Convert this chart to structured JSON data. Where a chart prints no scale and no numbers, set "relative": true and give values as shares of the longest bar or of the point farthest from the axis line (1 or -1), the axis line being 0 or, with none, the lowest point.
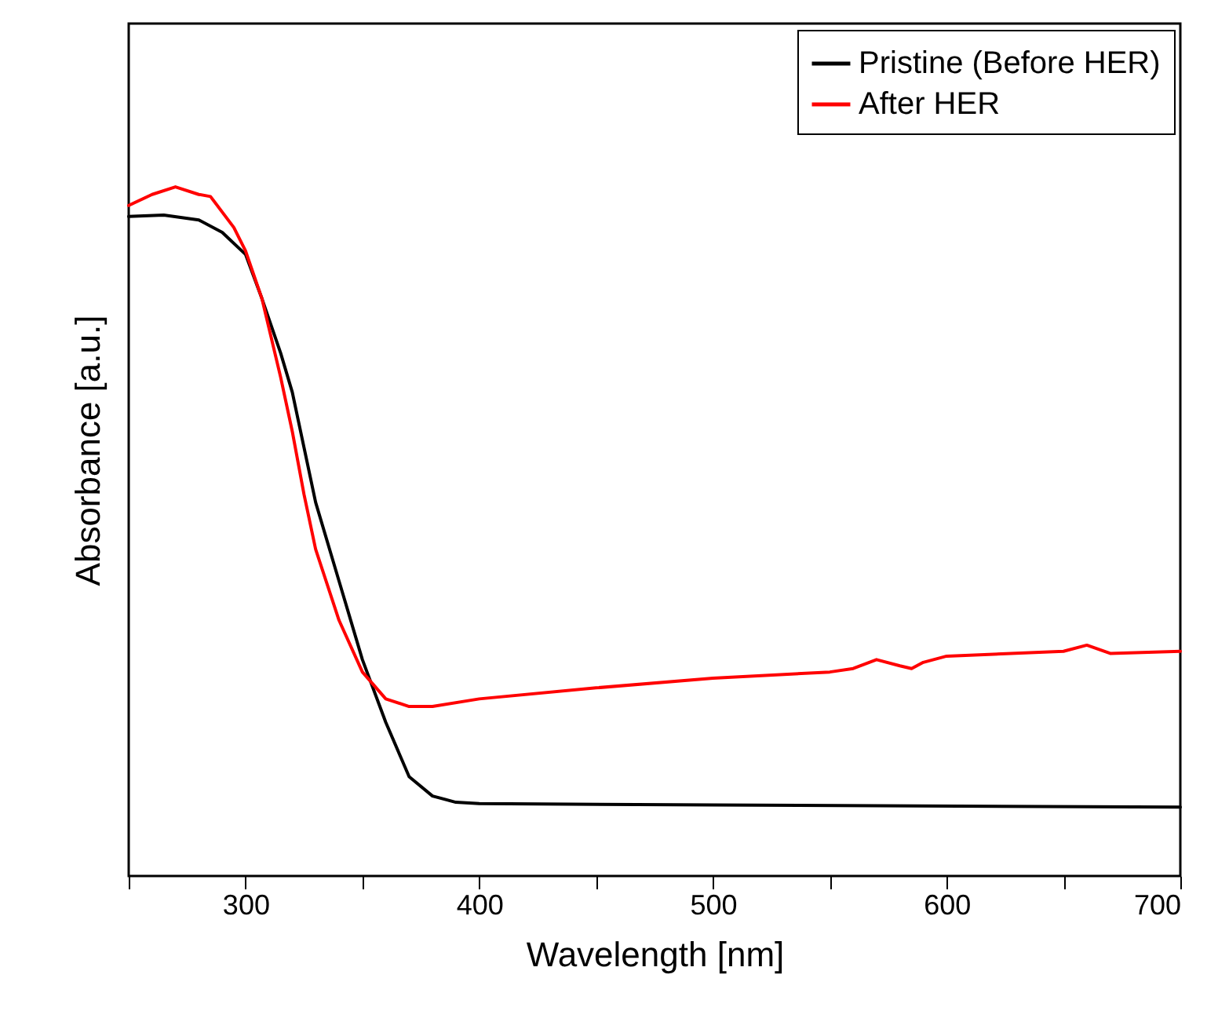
{
  "chart_data": {
    "type": "line",
    "relative": true,
    "xlabel": "Wavelength [nm]",
    "ylabel": "Absorbance [a.u.]",
    "xlim": [
      250,
      700
    ],
    "xticks": [
      {
        "value": 250,
        "label": null
      },
      300,
      {
        "value": 350,
        "label": null
      },
      400,
      {
        "value": 450,
        "label": null
      },
      500,
      {
        "value": 550,
        "label": null
      },
      600,
      {
        "value": 650,
        "label": null
      },
      700
    ],
    "tick_labels": "x",
    "legend": "top right",
    "grid": false,
    "line_style": "solid",
    "marker": "none",
    "series": [
      {
        "name": "Pristine (Before HER)",
        "color": "#000000",
        "x": [
          250,
          265,
          280,
          290,
          300,
          307,
          315,
          320,
          325,
          330,
          340,
          350,
          360,
          370,
          380,
          390,
          400,
          500,
          700
        ],
        "values": [
          0.957,
          0.959,
          0.952,
          0.934,
          0.902,
          0.838,
          0.759,
          0.702,
          0.622,
          0.542,
          0.428,
          0.314,
          0.223,
          0.144,
          0.116,
          0.107,
          0.105,
          0.103,
          0.1
        ]
      },
      {
        "name": "After HER",
        "color": "#ff0000",
        "x": [
          250,
          260,
          270,
          280,
          285,
          295,
          300,
          307,
          315,
          320,
          325,
          330,
          340,
          350,
          360,
          370,
          380,
          400,
          450,
          500,
          550,
          560,
          570,
          580,
          585,
          590,
          600,
          650,
          660,
          670,
          700
        ],
        "values": [
          0.973,
          0.989,
          1.0,
          0.989,
          0.986,
          0.941,
          0.907,
          0.838,
          0.724,
          0.645,
          0.554,
          0.474,
          0.371,
          0.296,
          0.257,
          0.246,
          0.246,
          0.257,
          0.273,
          0.287,
          0.296,
          0.301,
          0.314,
          0.305,
          0.301,
          0.31,
          0.319,
          0.326,
          0.335,
          0.323,
          0.326
        ]
      }
    ]
  }
}
